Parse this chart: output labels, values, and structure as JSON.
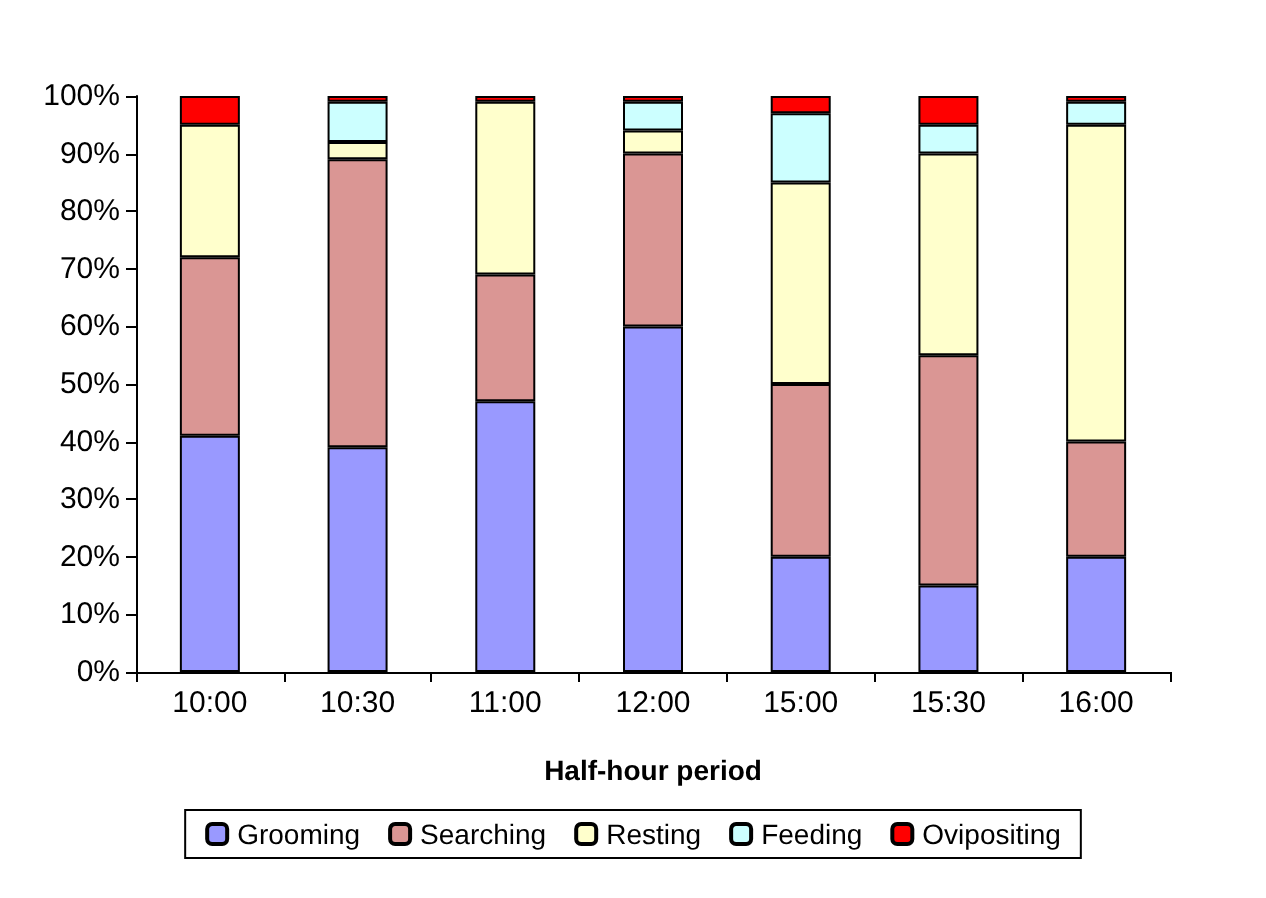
{
  "chart_data": {
    "type": "bar",
    "stacked": true,
    "xlabel": "Half-hour period",
    "categories": [
      "10:00",
      "10:30",
      "11:00",
      "12:00",
      "15:00",
      "15:30",
      "16:00"
    ],
    "series": [
      {
        "name": "Grooming",
        "color": "#9999ff",
        "values": [
          41,
          39,
          47,
          60,
          20,
          15,
          20
        ]
      },
      {
        "name": "Searching",
        "color": "#da9694",
        "values": [
          31,
          50,
          22,
          30,
          30,
          40,
          20
        ]
      },
      {
        "name": "Resting",
        "color": "#ffffcc",
        "values": [
          23,
          3,
          30,
          4,
          35,
          35,
          55
        ]
      },
      {
        "name": "Feeding",
        "color": "#ccffff",
        "values": [
          0,
          7,
          0,
          5,
          12,
          5,
          4
        ]
      },
      {
        "name": "Ovipositing",
        "color": "#ff0000",
        "values": [
          5,
          1,
          1,
          1,
          3,
          5,
          1
        ]
      }
    ],
    "ylim": [
      0,
      100
    ],
    "yticks": [
      {
        "value": 0,
        "label": "0%"
      },
      {
        "value": 10,
        "label": "10%"
      },
      {
        "value": 20,
        "label": "20%"
      },
      {
        "value": 30,
        "label": "30%"
      },
      {
        "value": 40,
        "label": "40%"
      },
      {
        "value": 50,
        "label": "50%"
      },
      {
        "value": 60,
        "label": "60%"
      },
      {
        "value": 70,
        "label": "70%"
      },
      {
        "value": 80,
        "label": "80%"
      },
      {
        "value": 90,
        "label": "90%"
      },
      {
        "value": 100,
        "label": "100%"
      }
    ],
    "grid": false,
    "legend": "bottom"
  }
}
